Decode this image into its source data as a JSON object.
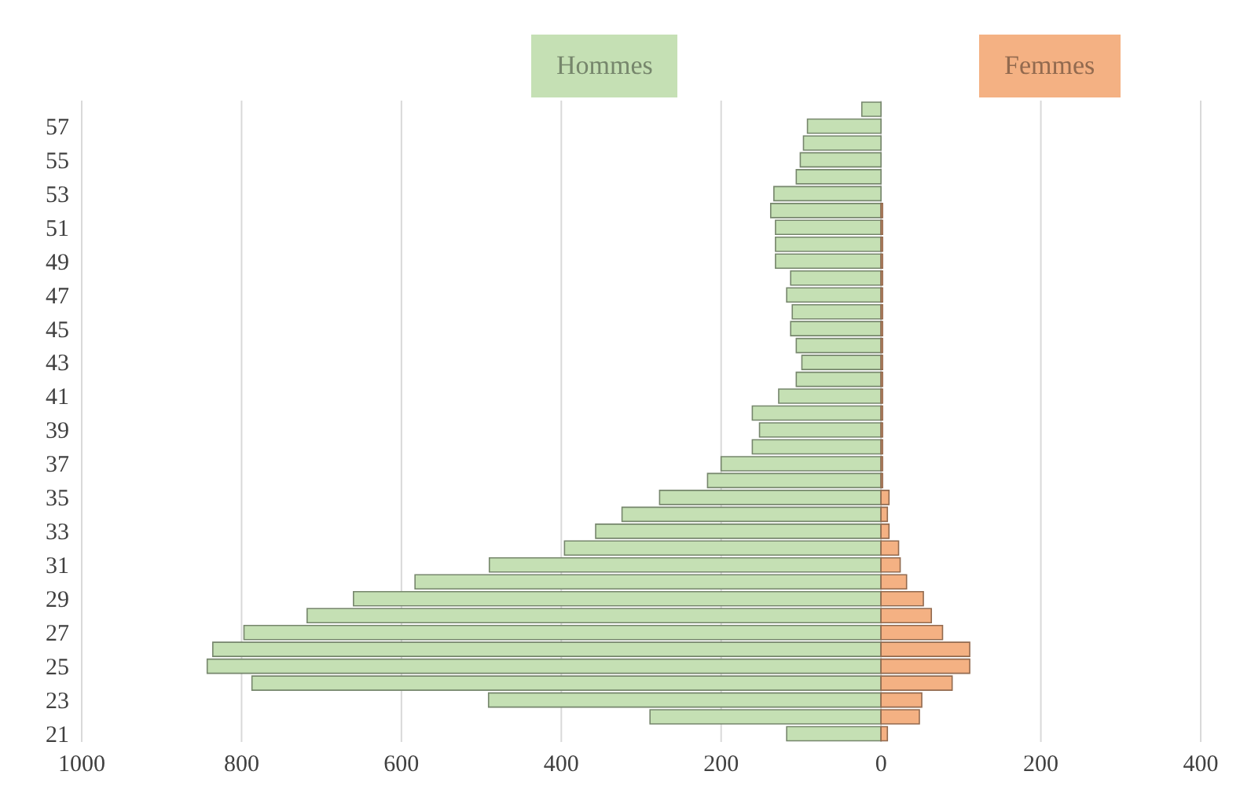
{
  "chart_data": {
    "type": "bar",
    "orientation": "horizontal",
    "stacked": true,
    "categories": [
      null,
      "57",
      null,
      "55",
      null,
      "53",
      null,
      "51",
      null,
      "49",
      null,
      "47",
      null,
      "45",
      null,
      "43",
      null,
      "41",
      null,
      "39",
      null,
      "37",
      null,
      "35",
      null,
      "33",
      null,
      "31",
      null,
      "29",
      null,
      "27",
      null,
      "25",
      null,
      "23",
      null,
      "21"
    ],
    "series": [
      {
        "name": "Hommes",
        "color": "#c5e0b4",
        "values": [
          -24,
          -92,
          -97,
          -101,
          -106,
          -134,
          -138,
          -132,
          -132,
          -132,
          -113,
          -118,
          -111,
          -113,
          -106,
          -99,
          -106,
          -128,
          -161,
          -152,
          -161,
          -200,
          -217,
          -277,
          -324,
          -357,
          -396,
          -490,
          -583,
          -660,
          -718,
          -797,
          -836,
          -843,
          -787,
          -491,
          -289,
          -118
        ]
      },
      {
        "name": "Femmes",
        "color": "#f4b183",
        "values": [
          0,
          0,
          0,
          0,
          0,
          0,
          2,
          2,
          2,
          2,
          2,
          2,
          2,
          2,
          2,
          2,
          2,
          2,
          2,
          2,
          2,
          2,
          2,
          10,
          8,
          10,
          22,
          24,
          32,
          53,
          63,
          77,
          111,
          111,
          89,
          51,
          48,
          8
        ]
      }
    ],
    "xlim": [
      -1000,
      400
    ],
    "xticks": [
      {
        "value": -1000,
        "label": "1000"
      },
      {
        "value": -800,
        "label": "800"
      },
      {
        "value": -600,
        "label": "600"
      },
      {
        "value": -400,
        "label": "400"
      },
      {
        "value": -200,
        "label": "200"
      },
      0,
      200,
      400
    ],
    "grid": "x",
    "legend": "top"
  }
}
